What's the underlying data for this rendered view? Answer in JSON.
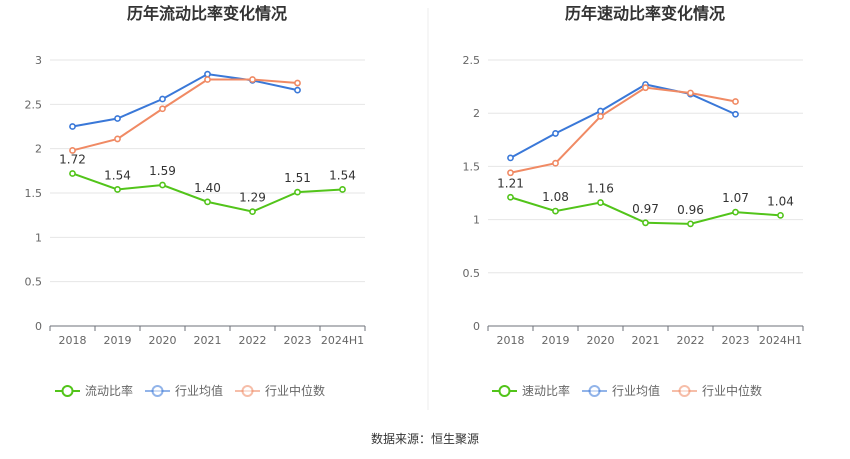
{
  "chart_data": [
    {
      "type": "line",
      "title": "历年流动比率变化情况",
      "categories": [
        "2018",
        "2019",
        "2020",
        "2021",
        "2022",
        "2023",
        "2024H1"
      ],
      "ylim": [
        0,
        3
      ],
      "yticks": [
        "0",
        "0.5",
        "1",
        "1.5",
        "2",
        "2.5",
        "3"
      ],
      "grid": true,
      "legend_position": "bottom",
      "series": [
        {
          "name": "流动比率",
          "color": "#52c41a",
          "values": [
            1.72,
            1.54,
            1.59,
            1.4,
            1.29,
            1.51,
            1.54
          ],
          "labels": [
            "1.72",
            "1.54",
            "1.59",
            "1.40",
            "1.29",
            "1.51",
            "1.54"
          ]
        },
        {
          "name": "行业均值",
          "color": "#3a78d8",
          "values": [
            2.25,
            2.34,
            2.56,
            2.84,
            2.77,
            2.66,
            null
          ]
        },
        {
          "name": "行业中位数",
          "color": "#f08a64",
          "values": [
            1.98,
            2.11,
            2.45,
            2.78,
            2.78,
            2.74,
            null
          ]
        }
      ]
    },
    {
      "type": "line",
      "title": "历年速动比率变化情况",
      "categories": [
        "2018",
        "2019",
        "2020",
        "2021",
        "2022",
        "2023",
        "2024H1"
      ],
      "ylim": [
        0,
        2.5
      ],
      "yticks": [
        "0",
        "0.5",
        "1",
        "1.5",
        "2",
        "2.5"
      ],
      "grid": true,
      "legend_position": "bottom",
      "series": [
        {
          "name": "速动比率",
          "color": "#52c41a",
          "values": [
            1.21,
            1.08,
            1.16,
            0.97,
            0.96,
            1.07,
            1.04
          ],
          "labels": [
            "1.21",
            "1.08",
            "1.16",
            "0.97",
            "0.96",
            "1.07",
            "1.04"
          ]
        },
        {
          "name": "行业均值",
          "color": "#3a78d8",
          "values": [
            1.58,
            1.81,
            2.02,
            2.27,
            2.18,
            1.99,
            null
          ]
        },
        {
          "name": "行业中位数",
          "color": "#f08a64",
          "values": [
            1.44,
            1.53,
            1.97,
            2.24,
            2.19,
            2.11,
            null
          ]
        }
      ]
    }
  ],
  "footer": {
    "source": "数据来源：恒生聚源"
  }
}
